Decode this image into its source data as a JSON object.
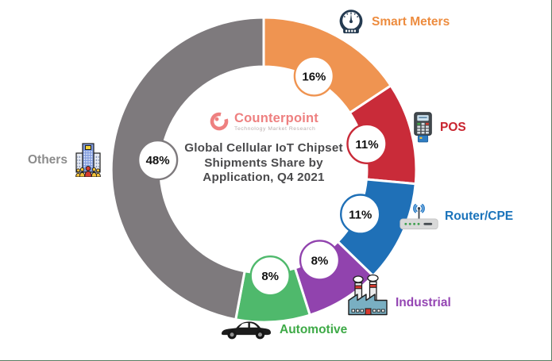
{
  "frame": {
    "background": "#ffffff",
    "edge_color": "#5a7d62"
  },
  "logo": {
    "name": "Counterpoint",
    "subtitle": "Technology Market Research",
    "brand_color": "#ee8080",
    "subtitle_color": "#b9aeae"
  },
  "title": {
    "lines": [
      "Global Cellular IoT Chipset",
      "Shipments Share by",
      "Application, Q4 2021"
    ],
    "color": "#4a4a4c"
  },
  "chart_data": {
    "type": "pie",
    "style": "donut",
    "title": "Global Cellular IoT Chipset Shipments Share by Application, Q4 2021",
    "start_angle_deg": 0,
    "direction": "clockwise",
    "legend_position": "around",
    "badge": {
      "fill": "#ffffff",
      "text_color": "#111111"
    },
    "segments": [
      {
        "label": "Smart Meters",
        "value": 16,
        "display": "16%",
        "color": "#ef9451",
        "label_color": "#ed8c3f",
        "icon": "gauge-icon"
      },
      {
        "label": "POS",
        "value": 11,
        "display": "11%",
        "color": "#c92b39",
        "label_color": "#c9242f",
        "icon": "pos-terminal-icon"
      },
      {
        "label": "Router/CPE",
        "value": 11,
        "display": "11%",
        "color": "#1f70b7",
        "label_color": "#1b74bb",
        "icon": "router-icon"
      },
      {
        "label": "Industrial",
        "value": 8,
        "display": "8%",
        "color": "#9143ae",
        "label_color": "#9445b3",
        "icon": "factory-icon"
      },
      {
        "label": "Automotive",
        "value": 8,
        "display": "8%",
        "color": "#4fb96c",
        "label_color": "#3eaa47",
        "icon": "car-icon"
      },
      {
        "label": "Others",
        "value": 48,
        "display": "48%",
        "color": "#7e7a7d",
        "label_color": "#8c8c8c",
        "icon": "building-icon"
      }
    ]
  }
}
